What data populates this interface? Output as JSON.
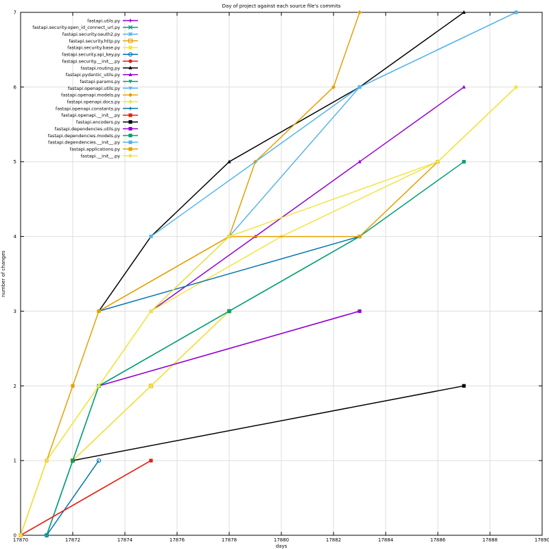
{
  "chart_data": {
    "type": "line",
    "title": "Day of project against each source file's commits",
    "xlabel": "days",
    "ylabel": "number of changes",
    "xlim": [
      17870,
      17890
    ],
    "ylim": [
      0,
      7
    ],
    "xticks": [
      17870,
      17872,
      17874,
      17876,
      17878,
      17880,
      17882,
      17884,
      17886,
      17888,
      17890
    ],
    "yticks": [
      0,
      1,
      2,
      3,
      4,
      5,
      6,
      7
    ],
    "grid": true,
    "legend_position": "top-left",
    "series": [
      {
        "name": "fastapi.utils.py",
        "color": "#9400d3",
        "marker": "plus",
        "points": [
          [
            17873,
            2
          ],
          [
            17883,
            3
          ]
        ]
      },
      {
        "name": "fastapi.security.open_id_connect_url.py",
        "color": "#009e73",
        "marker": "x",
        "points": [
          [
            17871,
            0
          ],
          [
            17872,
            1
          ]
        ]
      },
      {
        "name": "fastapi.security.oauth2.py",
        "color": "#56b4e9",
        "marker": "star",
        "points": [
          [
            17871,
            0
          ],
          [
            17872,
            1
          ]
        ]
      },
      {
        "name": "fastapi.security.http.py",
        "color": "#e69f00",
        "marker": "square-open",
        "points": [
          [
            17872,
            1
          ],
          [
            17875,
            2
          ],
          [
            17878,
            3
          ]
        ]
      },
      {
        "name": "fastapi.security.base.py",
        "color": "#f0e442",
        "marker": "square",
        "points": [
          [
            17872,
            1
          ],
          [
            17875,
            2
          ],
          [
            17878,
            3
          ]
        ]
      },
      {
        "name": "fastapi.security.api_key.py",
        "color": "#0072b2",
        "marker": "circle-open",
        "points": [
          [
            17871,
            0
          ],
          [
            17873,
            1
          ]
        ]
      },
      {
        "name": "fastapi.security.__init__.py",
        "color": "#e51e10",
        "marker": "circle",
        "points": [
          [
            17870,
            0
          ],
          [
            17875,
            1
          ]
        ]
      },
      {
        "name": "fastapi.routing.py",
        "color": "#000000",
        "marker": "triangle",
        "points": [
          [
            17873,
            3
          ],
          [
            17875,
            4
          ],
          [
            17878,
            5
          ],
          [
            17883,
            6
          ],
          [
            17887,
            7
          ]
        ]
      },
      {
        "name": "fastapi.pydantic_utils.py",
        "color": "#9400d3",
        "marker": "triangle",
        "points": [
          [
            17875,
            3
          ],
          [
            17879,
            4
          ],
          [
            17883,
            5
          ],
          [
            17887,
            6
          ]
        ]
      },
      {
        "name": "fastapi.params.py",
        "color": "#009e73",
        "marker": "triangle-down",
        "points": [
          [
            17871,
            0
          ],
          [
            17873,
            2
          ],
          [
            17878,
            3
          ],
          [
            17883,
            4
          ]
        ]
      },
      {
        "name": "fastapi.openapi.utils.py",
        "color": "#56b4e9",
        "marker": "triangle-down",
        "points": [
          [
            17875,
            3
          ],
          [
            17878,
            4
          ],
          [
            17883,
            6
          ],
          [
            17889,
            7
          ]
        ]
      },
      {
        "name": "fastapi.openapi.models.py",
        "color": "#e69f00",
        "marker": "diamond",
        "points": [
          [
            17873,
            3
          ],
          [
            17878,
            4
          ],
          [
            17879,
            5
          ],
          [
            17882,
            6
          ],
          [
            17883,
            7
          ]
        ]
      },
      {
        "name": "fastapi.openapi.docs.py",
        "color": "#f0e442",
        "marker": "diamond",
        "points": [
          [
            17870,
            0
          ],
          [
            17871,
            1
          ],
          [
            17873,
            2
          ],
          [
            17875,
            3
          ],
          [
            17880,
            4
          ],
          [
            17886,
            5
          ],
          [
            17889,
            6
          ]
        ]
      },
      {
        "name": "fastapi.openapi.constants.py",
        "color": "#0072b2",
        "marker": "plus",
        "points": [
          [
            17873,
            3
          ],
          [
            17883,
            4
          ]
        ]
      },
      {
        "name": "fastapi.openapi.__init__.py",
        "color": "#e51e10",
        "marker": "square",
        "points": [
          [
            17870,
            0
          ],
          [
            17875,
            1
          ]
        ]
      },
      {
        "name": "fastapi.encoders.py",
        "color": "#000000",
        "marker": "square",
        "points": [
          [
            17872,
            1
          ],
          [
            17887,
            2
          ]
        ]
      },
      {
        "name": "fastapi.dependencies.utils.py",
        "color": "#9400d3",
        "marker": "square",
        "points": [
          [
            17873,
            2
          ],
          [
            17883,
            3
          ]
        ]
      },
      {
        "name": "fastapi.dependencies.models.py",
        "color": "#009e73",
        "marker": "square",
        "points": [
          [
            17872,
            1
          ],
          [
            17873,
            2
          ],
          [
            17878,
            3
          ],
          [
            17883,
            4
          ],
          [
            17887,
            5
          ]
        ]
      },
      {
        "name": "fastapi.dependencies.__init__.py",
        "color": "#56b4e9",
        "marker": "square",
        "points": [
          [
            17875,
            4
          ],
          [
            17883,
            6
          ],
          [
            17889,
            7
          ]
        ]
      },
      {
        "name": "fastapi.applications.py",
        "color": "#e69f00",
        "marker": "square",
        "points": [
          [
            17870,
            0
          ],
          [
            17871,
            1
          ],
          [
            17872,
            2
          ],
          [
            17873,
            3
          ],
          [
            17878,
            4
          ],
          [
            17883,
            4
          ],
          [
            17886,
            5
          ]
        ]
      },
      {
        "name": "fastapi.__init__.py",
        "color": "#f0e442",
        "marker": "diamond",
        "points": [
          [
            17870,
            0
          ],
          [
            17871,
            1
          ],
          [
            17873,
            2
          ],
          [
            17875,
            3
          ],
          [
            17878,
            4
          ],
          [
            17886,
            5
          ],
          [
            17889,
            6
          ]
        ]
      }
    ]
  }
}
